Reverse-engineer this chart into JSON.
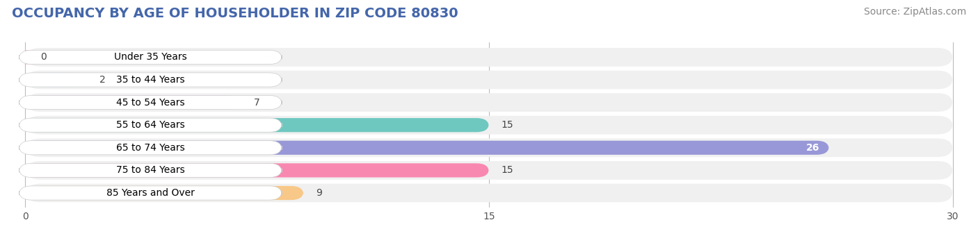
{
  "title": "OCCUPANCY BY AGE OF HOUSEHOLDER IN ZIP CODE 80830",
  "source": "Source: ZipAtlas.com",
  "categories": [
    "Under 35 Years",
    "35 to 44 Years",
    "45 to 54 Years",
    "55 to 64 Years",
    "65 to 74 Years",
    "75 to 84 Years",
    "85 Years and Over"
  ],
  "values": [
    0,
    2,
    7,
    15,
    26,
    15,
    9
  ],
  "bar_colors": [
    "#f5a8a8",
    "#a8c8f0",
    "#c8aad8",
    "#6ec8c0",
    "#9898d8",
    "#f888b0",
    "#f8c888"
  ],
  "xlim": [
    0,
    30
  ],
  "xticks": [
    0,
    15,
    30
  ],
  "background_color": "#f5f5f5",
  "bar_background_color": "#e8e8e8",
  "title_fontsize": 14,
  "source_fontsize": 10,
  "label_fontsize": 10,
  "value_fontsize": 10,
  "title_color": "#4466aa",
  "bar_row_bg": "#f0f0f0"
}
